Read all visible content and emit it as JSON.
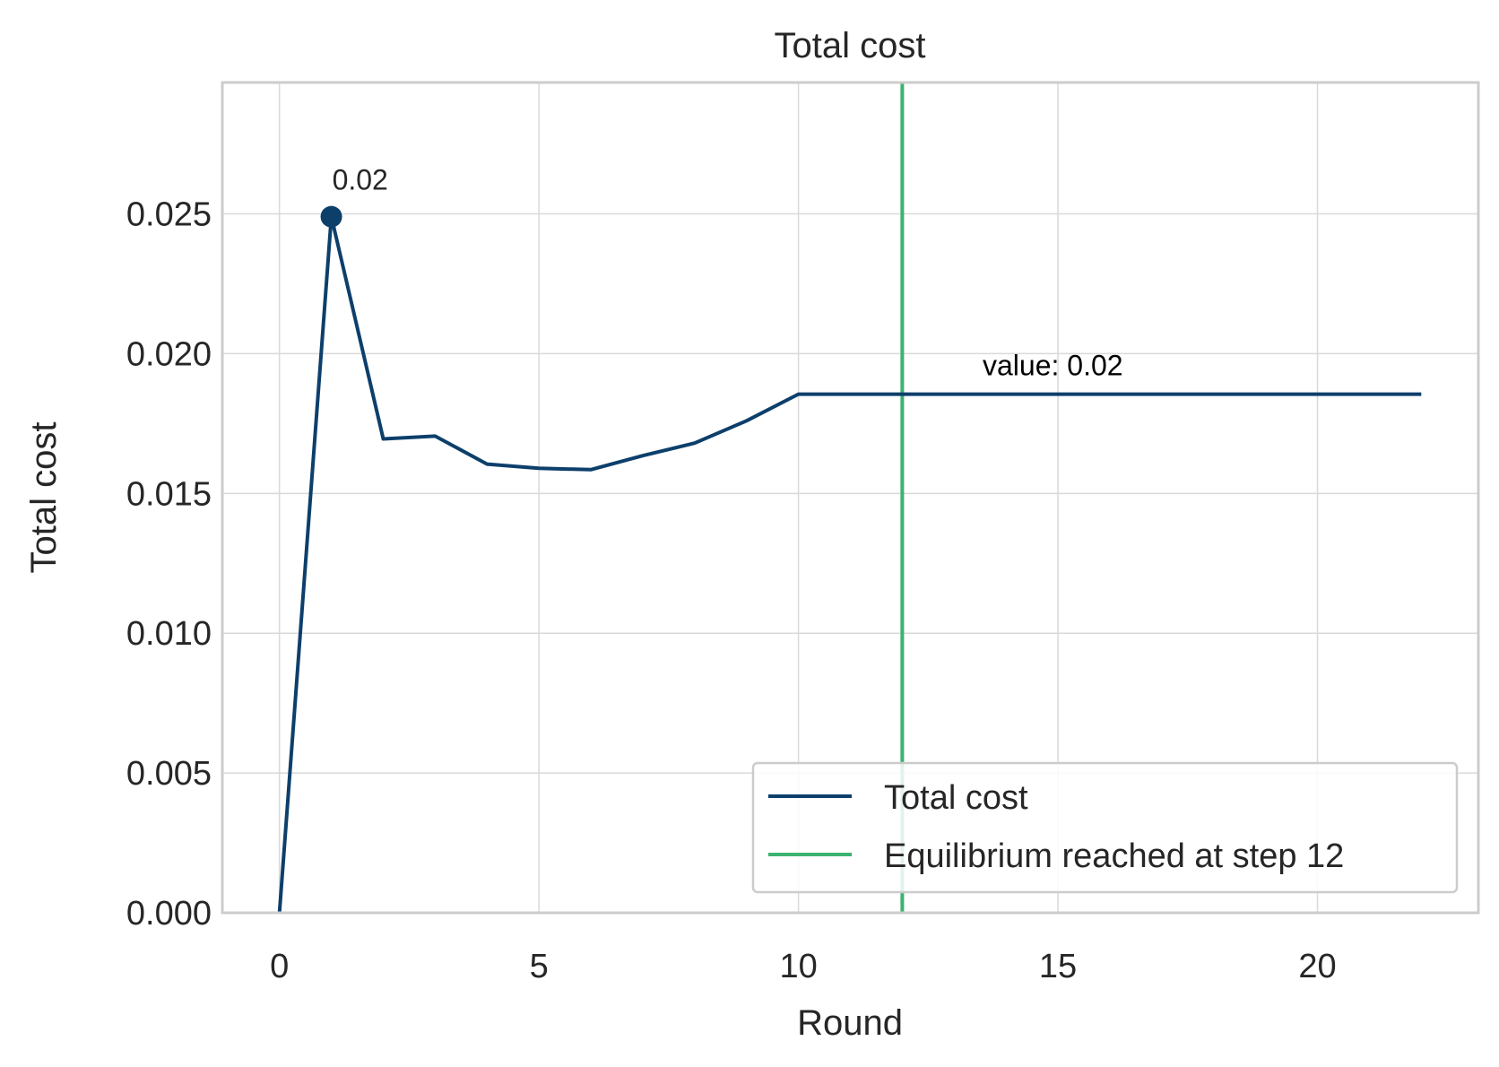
{
  "chart_data": {
    "type": "line",
    "title": "Total cost",
    "xlabel": "Round",
    "ylabel": "Total cost",
    "xlim": [
      -1.1,
      23.1
    ],
    "ylim": [
      0,
      0.0297
    ],
    "xticks": [
      0,
      5,
      10,
      15,
      20
    ],
    "xtick_labels": [
      "0",
      "5",
      "10",
      "15",
      "20"
    ],
    "yticks": [
      0,
      0.005,
      0.01,
      0.015,
      0.02,
      0.025
    ],
    "ytick_labels": [
      "0.000",
      "0.005",
      "0.010",
      "0.015",
      "0.020",
      "0.025"
    ],
    "grid": true,
    "legend_position": "lower-right",
    "series": [
      {
        "name": "Total cost",
        "color": "#0d3f6b",
        "x": [
          0,
          1,
          2,
          3,
          4,
          5,
          6,
          7,
          8,
          9,
          10,
          11,
          12,
          13,
          14,
          15,
          16,
          17,
          18,
          19,
          20,
          21,
          22
        ],
        "values": [
          0.0,
          0.0249,
          0.01695,
          0.01705,
          0.01605,
          0.0159,
          0.01585,
          0.01635,
          0.0168,
          0.0176,
          0.01855,
          0.01855,
          0.01855,
          0.01855,
          0.01855,
          0.01855,
          0.01855,
          0.01855,
          0.01855,
          0.01855,
          0.01855,
          0.01855,
          0.01855
        ]
      }
    ],
    "vline": {
      "name": "Equilibrium reached at step 12",
      "x": 12,
      "color": "#3cb371"
    },
    "peak_marker": {
      "x": 1,
      "y": 0.0249,
      "label": "0.02"
    },
    "value_annotation": {
      "text": "value: 0.02",
      "x": 14.9,
      "y": 0.01855
    }
  }
}
